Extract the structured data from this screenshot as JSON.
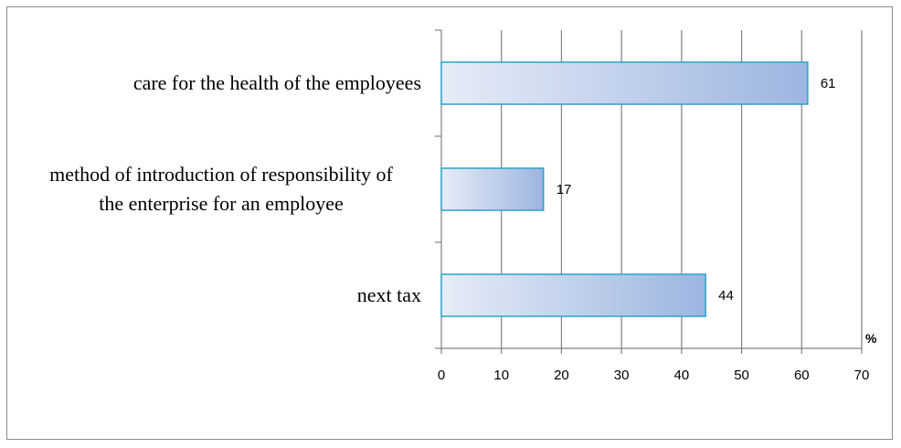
{
  "chart_data": {
    "type": "bar",
    "orientation": "horizontal",
    "categories": [
      [
        "care for the health of the employees"
      ],
      [
        "method of introduction of responsibility of",
        "the enterprise for an employee"
      ],
      [
        "next tax"
      ]
    ],
    "values": [
      61,
      17,
      44
    ],
    "value_labels": [
      "61",
      "17",
      "44"
    ],
    "xlim": [
      0,
      70
    ],
    "x_ticks": [
      "0",
      "10",
      "20",
      "30",
      "40",
      "50",
      "60",
      "70"
    ],
    "unit": "%",
    "grid": true,
    "legend": "none",
    "colors": {
      "bar_fill_start": "#e6ecf7",
      "bar_fill_end": "#9db5e1",
      "bar_stroke": "#2aa3c9",
      "grid": "#808080",
      "axis": "#808080"
    }
  }
}
